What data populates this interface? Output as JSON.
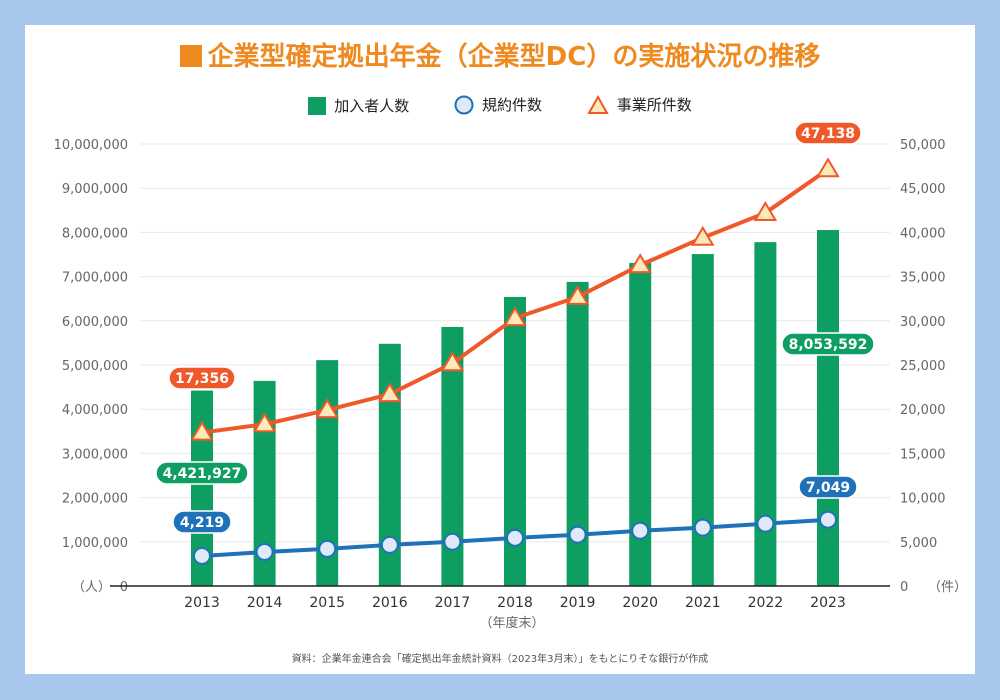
{
  "title": "企業型確定拠出年金（企業型DC）の実施状況の推移",
  "source_note": "資料：企業年金連合会「確定拠出年金統計資料（2023年3月末）」をもとにりそな銀行が作成",
  "colors": {
    "background": "#a7c8ec",
    "title": "#ee8a1f",
    "bars": "#0f9e62",
    "plans_line": "#1f72b8",
    "plans_marker_fill": "#dfe9f7",
    "offices_line": "#f0582a",
    "offices_marker_fill": "#fdeab9"
  },
  "legend": [
    {
      "label": "加入者人数",
      "icon": "green-square-icon"
    },
    {
      "label": "規約件数",
      "icon": "blue-circle-icon"
    },
    {
      "label": "事業所件数",
      "icon": "orange-triangle-icon"
    }
  ],
  "chart_data": {
    "type": "bar+line",
    "title": "企業型確定拠出年金（企業型DC）の実施状況の推移",
    "categories": [
      "2013",
      "2014",
      "2015",
      "2016",
      "2017",
      "2018",
      "2019",
      "2020",
      "2021",
      "2022",
      "2023"
    ],
    "xlabel": "（年度末）",
    "y_left": {
      "unit_label": "（人）",
      "range": [
        0,
        10000000
      ],
      "ticks": [
        "0",
        "1,000,000",
        "2,000,000",
        "3,000,000",
        "4,000,000",
        "5,000,000",
        "6,000,000",
        "7,000,000",
        "8,000,000",
        "9,000,000",
        "10,000,000"
      ]
    },
    "y_right": {
      "unit_label": "（件）",
      "range": [
        0,
        50000
      ],
      "ticks": [
        "0",
        "5,000",
        "10,000",
        "15,000",
        "20,000",
        "25,000",
        "30,000",
        "35,000",
        "40,000",
        "45,000",
        "50,000"
      ]
    },
    "grid": true,
    "legend_position": "top-center",
    "series": [
      {
        "name": "加入者人数",
        "type": "bar",
        "axis": "left",
        "values": [
          4421927,
          4640000,
          5110000,
          5480000,
          5860000,
          6540000,
          6880000,
          7310000,
          7510000,
          7780000,
          8053592
        ],
        "labels": [
          {
            "index": 0,
            "text": "4,421,927"
          },
          {
            "index": 10,
            "text": "8,053,592"
          }
        ]
      },
      {
        "name": "規約件数",
        "type": "line",
        "marker": "circle",
        "axis": "right",
        "values": [
          4219,
          4500,
          4800,
          5100,
          5400,
          5700,
          5950,
          6200,
          6450,
          6750,
          7049
        ],
        "labels": [
          {
            "index": 0,
            "text": "4,219"
          },
          {
            "index": 10,
            "text": "7,049"
          }
        ]
      },
      {
        "name": "事業所件数",
        "type": "line",
        "marker": "triangle",
        "axis": "right",
        "values": [
          17356,
          18300,
          19900,
          21700,
          25200,
          30300,
          32700,
          36300,
          39400,
          42200,
          47138
        ],
        "labels": [
          {
            "index": 0,
            "text": "17,356"
          },
          {
            "index": 10,
            "text": "47,138"
          }
        ]
      }
    ]
  }
}
